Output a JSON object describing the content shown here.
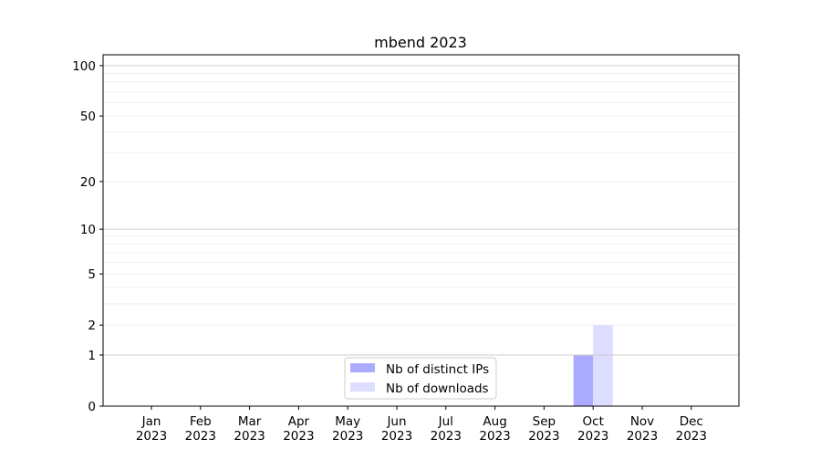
{
  "chart_data": {
    "type": "bar",
    "title": "mbend 2023",
    "xlabel": "",
    "ylabel": "",
    "categories": [
      "Jan\n2023",
      "Feb\n2023",
      "Mar\n2023",
      "Apr\n2023",
      "May\n2023",
      "Jun\n2023",
      "Jul\n2023",
      "Aug\n2023",
      "Sep\n2023",
      "Oct\n2023",
      "Nov\n2023",
      "Dec\n2023"
    ],
    "y_scale": "symlog",
    "yticks": [
      0,
      1,
      2,
      5,
      10,
      20,
      50,
      100
    ],
    "ylim": [
      0,
      116
    ],
    "grid": true,
    "legend_position": "lower-center",
    "series": [
      {
        "name": "Nb of distinct IPs",
        "color": "#aaaaff",
        "values": [
          0,
          0,
          0,
          0,
          0,
          0,
          0,
          0,
          0,
          1,
          0,
          0
        ]
      },
      {
        "name": "Nb of downloads",
        "color": "#ddddff",
        "values": [
          0,
          0,
          0,
          0,
          0,
          0,
          0,
          0,
          0,
          2,
          0,
          0
        ]
      }
    ]
  }
}
